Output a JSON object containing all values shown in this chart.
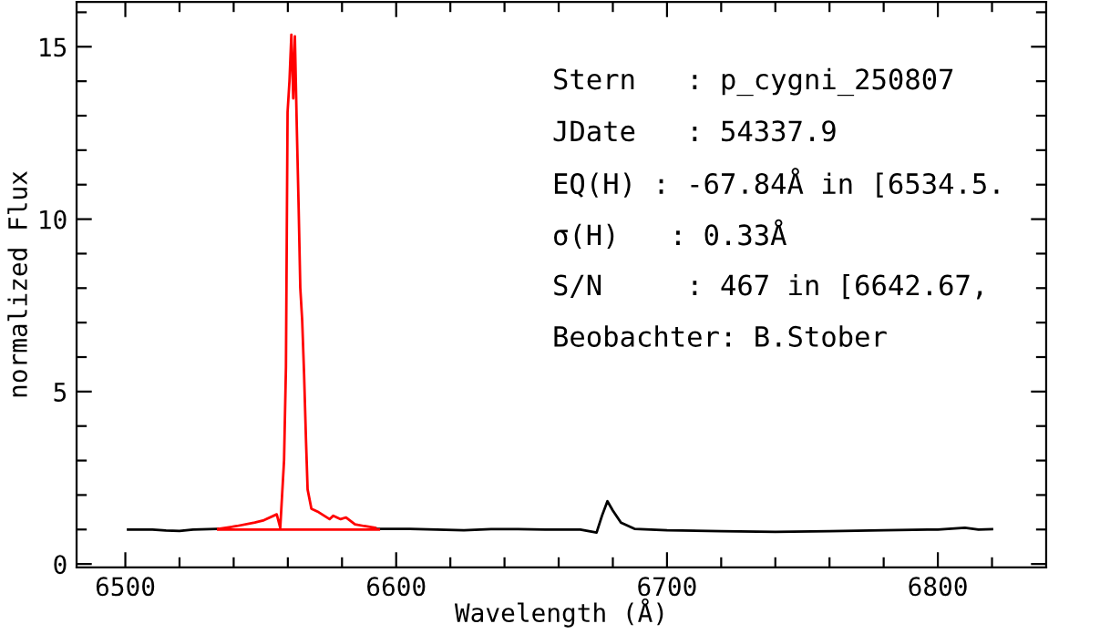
{
  "chart_data": {
    "type": "line",
    "xlabel": "Wavelength (Å)",
    "ylabel": "normalized Flux",
    "xlim": [
      6482,
      6840
    ],
    "ylim": [
      -0.1,
      16.3
    ],
    "xticks": [
      6500,
      {
        "value": 6520,
        "label": null
      },
      {
        "value": 6540,
        "label": null
      },
      {
        "value": 6560,
        "label": null
      },
      {
        "value": 6580,
        "label": null
      },
      6600,
      {
        "value": 6620,
        "label": null
      },
      {
        "value": 6640,
        "label": null
      },
      {
        "value": 6660,
        "label": null
      },
      {
        "value": 6680,
        "label": null
      },
      6700,
      {
        "value": 6720,
        "label": null
      },
      {
        "value": 6740,
        "label": null
      },
      {
        "value": 6760,
        "label": null
      },
      {
        "value": 6780,
        "label": null
      },
      6800,
      {
        "value": 6820,
        "label": null
      }
    ],
    "yticks": [
      0,
      {
        "value": 1,
        "label": null
      },
      {
        "value": 2,
        "label": null
      },
      {
        "value": 3,
        "label": null
      },
      {
        "value": 4,
        "label": null
      },
      5,
      {
        "value": 6,
        "label": null
      },
      {
        "value": 7,
        "label": null
      },
      {
        "value": 8,
        "label": null
      },
      {
        "value": 9,
        "label": null
      },
      10,
      {
        "value": 11,
        "label": null
      },
      {
        "value": 12,
        "label": null
      },
      {
        "value": 13,
        "label": null
      },
      {
        "value": 14,
        "label": null
      },
      15,
      {
        "value": 16,
        "label": null
      }
    ],
    "series": [
      {
        "color": "#000000",
        "x": [
          6501,
          6510,
          6515,
          6520,
          6525,
          6534,
          6535,
          6593,
          6605,
          6615,
          6625,
          6635,
          6645,
          6655,
          6668,
          6674,
          6676,
          6678,
          6680,
          6683,
          6688,
          6700,
          6720,
          6740,
          6760,
          6780,
          6800,
          6810,
          6815,
          6820
        ],
        "values": [
          1.0,
          1.0,
          0.97,
          0.96,
          1.0,
          1.02,
          null,
          1.02,
          1.02,
          1.0,
          0.98,
          1.01,
          1.01,
          1.0,
          1.0,
          0.91,
          1.4,
          1.82,
          1.55,
          1.2,
          1.02,
          0.98,
          0.95,
          0.93,
          0.95,
          0.98,
          1.0,
          1.05,
          1.0,
          1.01
        ]
      },
      {
        "color": "#ff0000",
        "x": [
          6534.3,
          6541.1,
          6547.8,
          6551.2,
          6555.9,
          6557.2,
          6558.6,
          6559.3,
          6559.9,
          6560.6,
          6561.3,
          6562.0,
          6562.6,
          6563.3,
          6564.0,
          6564.6,
          6565.3,
          6566.0,
          6566.7,
          6567.3,
          6568.7,
          6571.4,
          6575.4,
          6576.8,
          6579.5,
          6581.5,
          6584.8,
          6588.2,
          6592.3
        ],
        "values": [
          1.02,
          1.1,
          1.2,
          1.27,
          1.44,
          1.05,
          3.0,
          5.7,
          13.1,
          14.0,
          15.35,
          13.5,
          15.3,
          12.7,
          10.3,
          8.0,
          7.06,
          5.5,
          3.6,
          2.16,
          1.6,
          1.5,
          1.3,
          1.4,
          1.3,
          1.35,
          1.15,
          1.1,
          1.05
        ]
      },
      {
        "color": "#ff0000",
        "x": [
          6534.3,
          6593.6
        ],
        "values": [
          1.0,
          1.0
        ]
      }
    ],
    "annotations": [
      "Stern   : p_cygni_250807",
      "JDate   : 54337.9",
      "EQ(H) : -67.84Å in [6534.5.",
      "σ(H)   : 0.33Å",
      "S/N     : 467 in [6642.67,",
      "Beobachter: B.Stober"
    ]
  }
}
